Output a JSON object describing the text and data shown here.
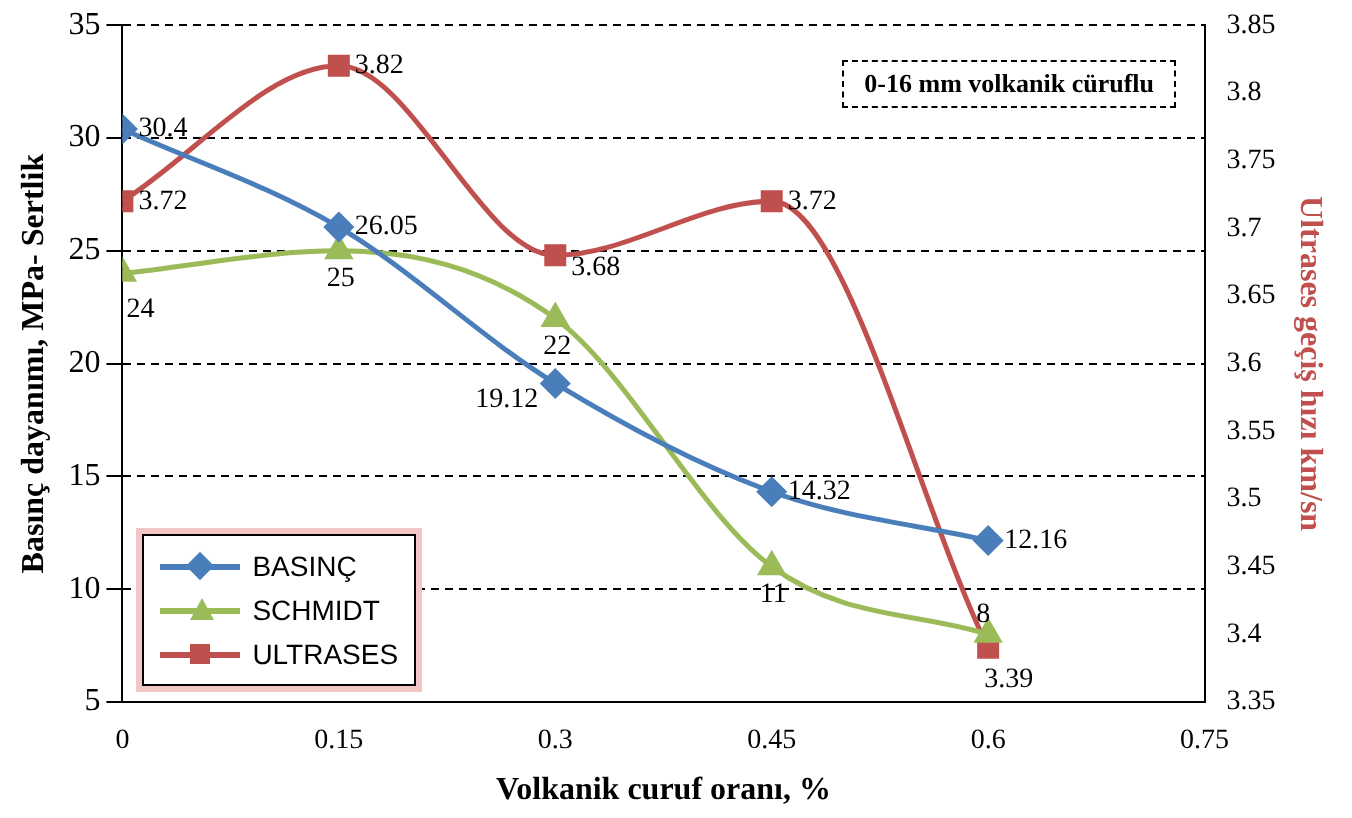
{
  "chart_data": {
    "type": "line",
    "xlabel": "Volkanik curuf oranı, %",
    "ylabel": "Basınç dayanımı, MPa- Sertlik",
    "y2label": "Ultrases geçiş hızı km/sn",
    "x": [
      0,
      0.15,
      0.3,
      0.45,
      0.6
    ],
    "xlim": [
      0,
      0.75
    ],
    "xticks": [
      0,
      0.15,
      0.3,
      0.45,
      0.6,
      0.75
    ],
    "ylim": [
      5,
      35
    ],
    "yticks": [
      5,
      10,
      15,
      20,
      25,
      30,
      35
    ],
    "y2lim": [
      3.35,
      3.85
    ],
    "y2ticks": [
      3.35,
      3.4,
      3.45,
      3.5,
      3.55,
      3.6,
      3.65,
      3.7,
      3.75,
      3.8,
      3.85
    ],
    "grid": "y",
    "legend": "bottom left",
    "data_labels": true,
    "annotations": [
      "0-16 mm volkanik cüruflu"
    ],
    "series": [
      {
        "name": "BASINÇ",
        "color": "#4a7ebb",
        "marker": "diamond",
        "values": [
          30.4,
          26.05,
          19.12,
          14.32,
          12.16
        ]
      },
      {
        "name": "SCHMIDT",
        "color": "#9bbb59",
        "marker": "triangle",
        "values": [
          24,
          25,
          22,
          11,
          8
        ]
      },
      {
        "name": "ULTRASES",
        "color": "#c0504d",
        "marker": "square",
        "axis": "y2",
        "values": [
          3.72,
          3.82,
          3.68,
          3.72,
          3.39
        ]
      }
    ]
  }
}
